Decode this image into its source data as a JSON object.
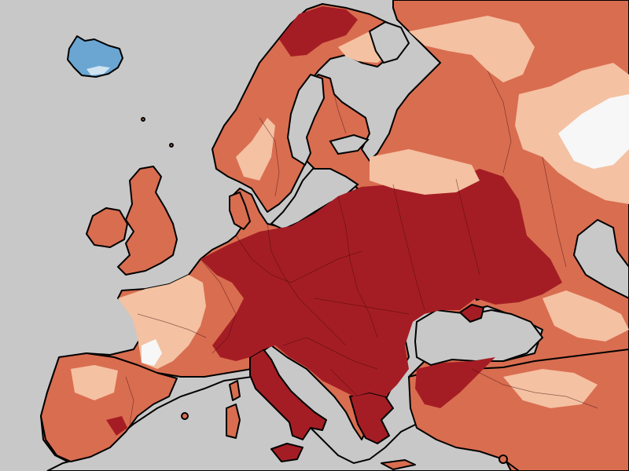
{
  "map": {
    "legend_classes": [
      {
        "key": "strong_warm",
        "color": "#a51d24"
      },
      {
        "key": "warm",
        "color": "#d96d50"
      },
      {
        "key": "slight_warm",
        "color": "#f4c1a2"
      },
      {
        "key": "neutral",
        "color": "#f7f7f7"
      },
      {
        "key": "cool",
        "color": "#6ba6d3"
      },
      {
        "key": "water",
        "color": "#c8c8c8"
      }
    ],
    "coastline_color": "#000000"
  }
}
